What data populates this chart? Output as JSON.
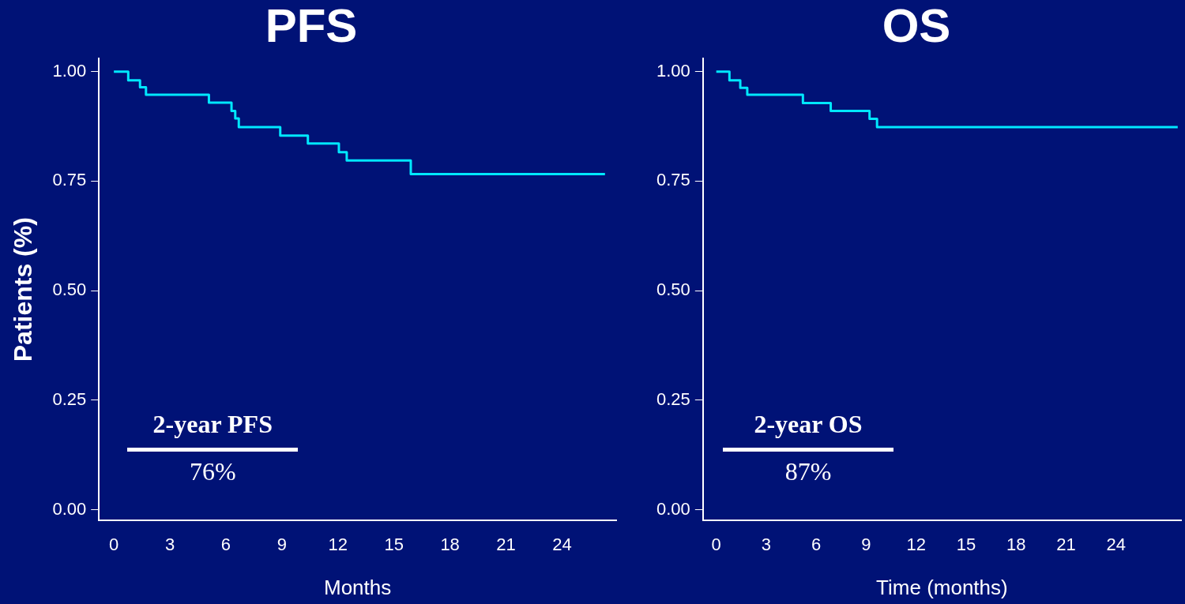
{
  "chart_data": [
    {
      "type": "step",
      "title": "PFS",
      "xlabel": "Months",
      "ylabel": "Patients (%)",
      "series": [
        {
          "color": "#00e8ff",
          "x": [
            0,
            0.77,
            1.4,
            1.72,
            5.09,
            6.3,
            6.5,
            6.69,
            8.91,
            10.39,
            12.05,
            12.47,
            15.9,
            26.3
          ],
          "values": [
            1.0,
            0.98,
            0.964,
            0.947,
            0.929,
            0.91,
            0.893,
            0.873,
            0.854,
            0.836,
            0.816,
            0.797,
            0.766,
            0.766
          ]
        }
      ],
      "xlim": [
        -0.8,
        26.9
      ],
      "xticks": [
        0,
        3,
        6,
        9,
        12,
        15,
        18,
        21,
        24
      ],
      "ylim": [
        -0.025,
        1.03
      ],
      "yticks": [
        {
          "value": 0,
          "label": "0.00"
        },
        {
          "value": 0.25,
          "label": "0.25"
        },
        {
          "value": 0.5,
          "label": "0.50"
        },
        {
          "value": 0.75,
          "label": "0.75"
        },
        {
          "value": 1,
          "label": "1.00"
        }
      ],
      "annotations": [
        "2-year PFS",
        "76%"
      ]
    },
    {
      "type": "step",
      "title": "OS",
      "xlabel": "Time (months)",
      "series": [
        {
          "color": "#00e8ff",
          "x": [
            0,
            0.79,
            1.44,
            1.86,
            5.2,
            6.87,
            9.2,
            9.65,
            27.7
          ],
          "values": [
            1.0,
            0.98,
            0.963,
            0.947,
            0.928,
            0.91,
            0.892,
            0.873,
            0.873
          ]
        }
      ],
      "xlim": [
        -0.8,
        27.9
      ],
      "xticks": [
        0,
        3,
        6,
        9,
        12,
        15,
        18,
        21,
        24
      ],
      "ylim": [
        -0.025,
        1.03
      ],
      "yticks": [
        {
          "value": 0,
          "label": "0.00"
        },
        {
          "value": 0.25,
          "label": "0.25"
        },
        {
          "value": 0.5,
          "label": "0.50"
        },
        {
          "value": 0.75,
          "label": "0.75"
        },
        {
          "value": 1,
          "label": "1.00"
        }
      ],
      "annotations": [
        "2-year OS",
        "87%"
      ]
    }
  ]
}
